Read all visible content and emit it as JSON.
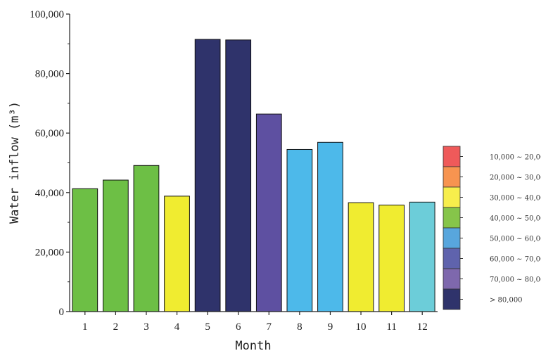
{
  "chart_data": {
    "type": "bar",
    "xlabel": "Month",
    "ylabel": "Water inflow (m³)",
    "categories": [
      "1",
      "2",
      "3",
      "4",
      "5",
      "6",
      "7",
      "8",
      "9",
      "10",
      "11",
      "12"
    ],
    "values": [
      41300,
      44200,
      49100,
      38800,
      91500,
      91300,
      66400,
      54500,
      56900,
      36600,
      35800,
      36800
    ],
    "bar_colors": [
      "#6dbf45",
      "#6dbf45",
      "#6dbf45",
      "#f0ec30",
      "#2f336b",
      "#2f336b",
      "#5e50a1",
      "#4db9ea",
      "#4db9ea",
      "#f0ec30",
      "#f0ec30",
      "#6ccdd9"
    ],
    "ylim": [
      0,
      100000
    ],
    "yticks": [
      0,
      20000,
      40000,
      60000,
      80000,
      100000
    ],
    "ytick_labels": [
      "0",
      "20,000",
      "40,000",
      "60,000",
      "80,000",
      "100,000"
    ],
    "grid": false,
    "legend": {
      "placement": "right",
      "entries": [
        {
          "label": "10,000 ~ 20,000",
          "color": "#ef5a5a"
        },
        {
          "label": "20,000 ~ 30,000",
          "color": "#f79450"
        },
        {
          "label": "30,000 ~ 40,000",
          "color": "#f7ee4c"
        },
        {
          "label": "40,000 ~ 50,000",
          "color": "#86c54a"
        },
        {
          "label": "50,000 ~ 60,000",
          "color": "#58a6dd"
        },
        {
          "label": "60,000 ~ 70,000",
          "color": "#5f63ad"
        },
        {
          "label": "70,000 ~ 80,000",
          "color": "#7e68ad"
        },
        {
          "label": "> 80,000",
          "color": "#2f336b"
        }
      ]
    }
  }
}
